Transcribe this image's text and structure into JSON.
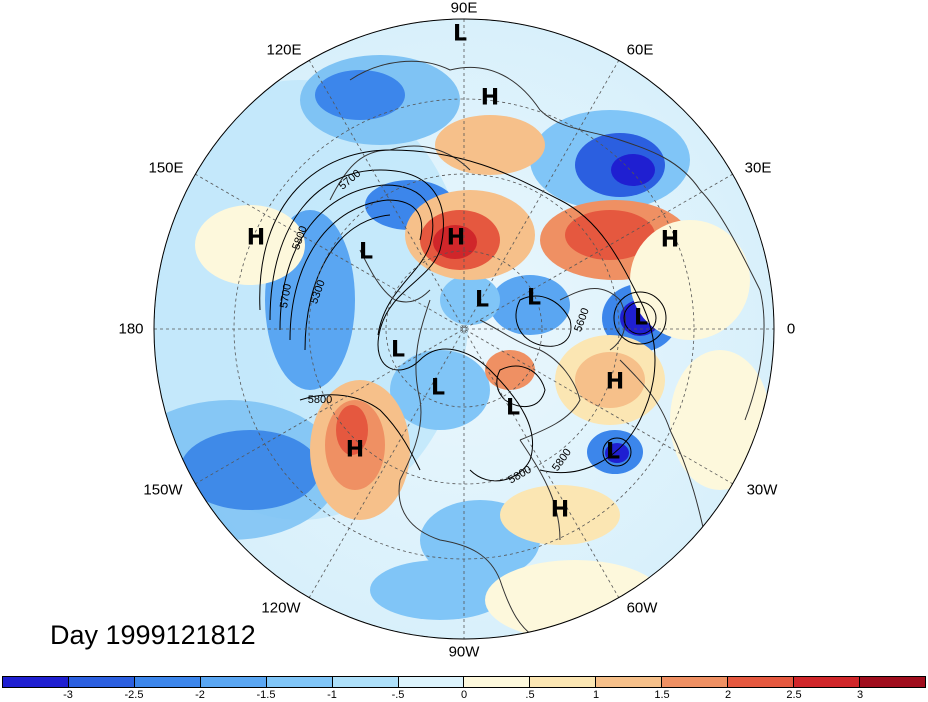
{
  "title": "Day 1999121812",
  "longitude_labels": {
    "top": "90E",
    "top_right_1": "60E",
    "right_upper": "30E",
    "right": "0",
    "right_lower": "30W",
    "bottom_right": "60W",
    "bottom": "90W",
    "bottom_left": "120W",
    "left_lower": "150W",
    "left": "180",
    "left_upper": "150E",
    "top_left": "120E"
  },
  "pressure_centers": [
    {
      "type": "L"
    },
    {
      "type": "H"
    },
    {
      "type": "H"
    },
    {
      "type": "L"
    },
    {
      "type": "H"
    },
    {
      "type": "H"
    },
    {
      "type": "L"
    },
    {
      "type": "L"
    },
    {
      "type": "L"
    },
    {
      "type": "L"
    },
    {
      "type": "L"
    },
    {
      "type": "L"
    },
    {
      "type": "H"
    },
    {
      "type": "H"
    },
    {
      "type": "L"
    },
    {
      "type": "H"
    }
  ],
  "contour_labels": [
    "5700",
    "5800",
    "5300",
    "5800",
    "5700",
    "5800",
    "5600",
    "5800"
  ],
  "colorbar": {
    "ticks": [
      "-3",
      "-2.5",
      "-2",
      "-1.5",
      "-1",
      "-.5",
      "0",
      ".5",
      "1",
      "1.5",
      "2",
      "2.5",
      "3"
    ],
    "colors": [
      "#1f1fd1",
      "#2b5fe0",
      "#3c86eb",
      "#5aa6f2",
      "#80c5f7",
      "#aee0fa",
      "#dcf3fc",
      "#fdf8dc",
      "#fbe6b3",
      "#f6c08a",
      "#ef9063",
      "#e5583f",
      "#d0262a",
      "#a00d1d"
    ]
  },
  "colors": {
    "land_outline": "#333333",
    "contour": "#000000",
    "grid": "#555555"
  }
}
